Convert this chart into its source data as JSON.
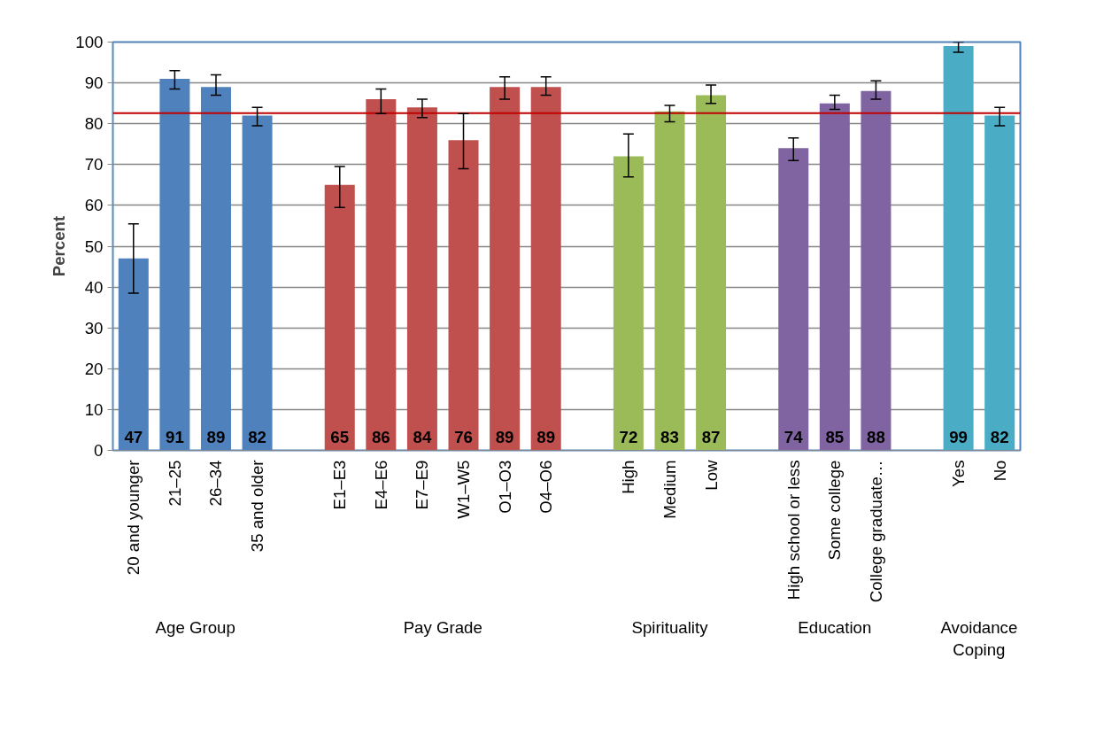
{
  "chart_data": {
    "type": "bar",
    "ylabel": "Percent",
    "categories": [
      "20 and younger",
      "21–25",
      "26–34",
      "35 and older",
      null,
      "E1–E3",
      "E4–E6",
      "E7–E9",
      "W1–W5",
      "O1–O3",
      "O4–O6",
      null,
      "High",
      "Medium",
      "Low",
      null,
      "High school or less",
      "Some college",
      "College graduate…",
      null,
      "Yes",
      "No"
    ],
    "values": [
      47,
      91,
      89,
      82,
      null,
      65,
      86,
      84,
      76,
      89,
      89,
      null,
      72,
      83,
      87,
      null,
      74,
      85,
      88,
      null,
      99,
      82
    ],
    "colors": [
      "#4f81bd",
      "#4f81bd",
      "#4f81bd",
      "#4f81bd",
      null,
      "#c0504d",
      "#c0504d",
      "#c0504d",
      "#c0504d",
      "#c0504d",
      "#c0504d",
      null,
      "#9bbb59",
      "#9bbb59",
      "#9bbb59",
      null,
      "#8064a2",
      "#8064a2",
      "#8064a2",
      null,
      "#4bacc6",
      "#4bacc6"
    ],
    "errors": [
      [
        38.5,
        55.5
      ],
      [
        88.5,
        93
      ],
      [
        87,
        92
      ],
      [
        79.5,
        84
      ],
      null,
      [
        59.5,
        69.5
      ],
      [
        82.5,
        88.5
      ],
      [
        81.5,
        86
      ],
      [
        69,
        82.5
      ],
      [
        86,
        91.5
      ],
      [
        87,
        91.5
      ],
      null,
      [
        67,
        77.5
      ],
      [
        80.5,
        84.5
      ],
      [
        85,
        89.5
      ],
      null,
      [
        71,
        76.5
      ],
      [
        83.5,
        87
      ],
      [
        86,
        90.5
      ],
      null,
      [
        97.5,
        100
      ],
      [
        79.5,
        84
      ]
    ],
    "data_labels": true,
    "ylim": [
      0,
      100
    ],
    "yticks": [
      0,
      10,
      20,
      30,
      40,
      50,
      60,
      70,
      80,
      90,
      100
    ],
    "grid": "y",
    "ref_lines": [
      {
        "axis": "y",
        "value": 82.6,
        "color": "#c00000"
      }
    ],
    "annotations": [
      "Age Group",
      "Pay Grade",
      "Spirituality",
      "Education",
      "Avoidance\nCoping"
    ]
  }
}
